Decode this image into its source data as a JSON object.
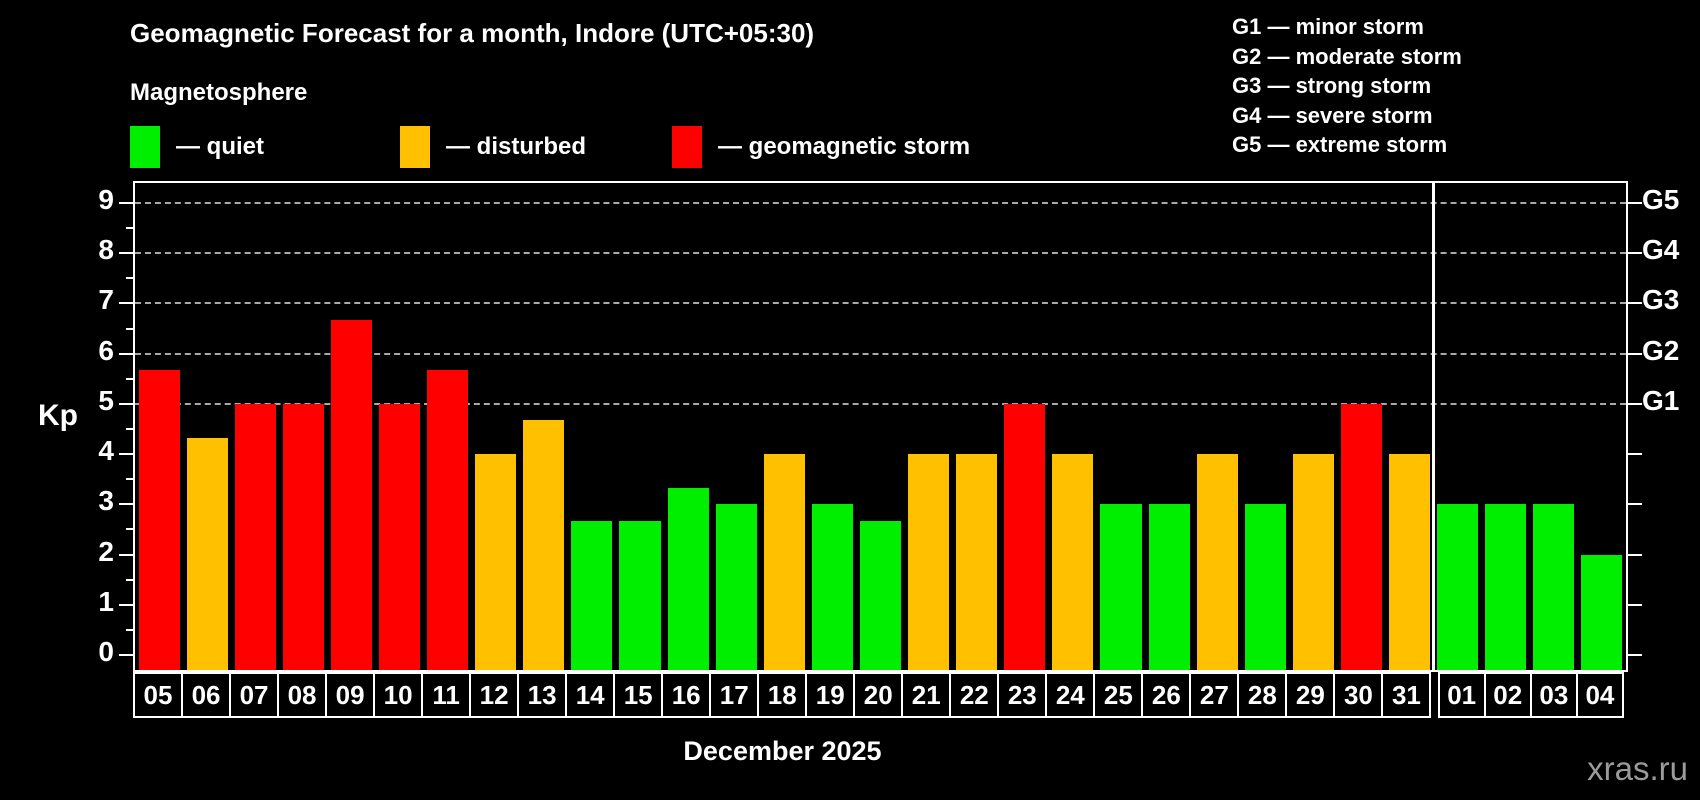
{
  "header": {
    "title": "Geomagnetic Forecast for a month, Indore (UTC+05:30)",
    "subtitle": "Magnetosphere"
  },
  "legend": {
    "items": [
      {
        "key": "quiet",
        "label": "— quiet",
        "color": "#00ee00"
      },
      {
        "key": "disturbed",
        "label": "— disturbed",
        "color": "#ffc000"
      },
      {
        "key": "storm",
        "label": "— geomagnetic storm",
        "color": "#ff0000"
      }
    ]
  },
  "g_scale_legend": {
    "items": [
      "G1 — minor storm",
      "G2 — moderate storm",
      "G3 — strong storm",
      "G4 — severe storm",
      "G5 — extreme storm"
    ]
  },
  "chart_data": {
    "type": "bar",
    "title": "Geomagnetic Forecast for a month, Indore (UTC+05:30)",
    "ylabel": "Kp",
    "xlabel": "December 2025",
    "categories": [
      "05",
      "06",
      "07",
      "08",
      "09",
      "10",
      "11",
      "12",
      "13",
      "14",
      "15",
      "16",
      "17",
      "18",
      "19",
      "20",
      "21",
      "22",
      "23",
      "24",
      "25",
      "26",
      "27",
      "28",
      "29",
      "30",
      "31",
      "01",
      "02",
      "03",
      "04"
    ],
    "values": [
      5.67,
      4.33,
      5,
      5,
      6.67,
      5,
      5.67,
      4,
      4.67,
      2.67,
      2.67,
      3.33,
      3,
      4,
      3,
      2.67,
      4,
      4,
      5,
      4,
      3,
      3,
      4,
      3,
      4,
      5,
      4,
      3,
      3,
      3,
      2
    ],
    "statuses": [
      "storm",
      "disturbed",
      "storm",
      "storm",
      "storm",
      "storm",
      "storm",
      "disturbed",
      "disturbed",
      "quiet",
      "quiet",
      "quiet",
      "quiet",
      "disturbed",
      "quiet",
      "quiet",
      "disturbed",
      "disturbed",
      "storm",
      "disturbed",
      "quiet",
      "quiet",
      "disturbed",
      "quiet",
      "disturbed",
      "storm",
      "disturbed",
      "quiet",
      "quiet",
      "quiet",
      "quiet"
    ],
    "status_colors": {
      "quiet": "#00ee00",
      "disturbed": "#ffc000",
      "storm": "#ff0000"
    },
    "y_ticks": [
      0,
      1,
      2,
      3,
      4,
      5,
      6,
      7,
      8,
      9
    ],
    "ylim": [
      0,
      9
    ],
    "y_display_max": 9.4,
    "y_display_min": -0.3,
    "gridlines_at": [
      5,
      6,
      7,
      8,
      9
    ],
    "grid_style": "dashed horizontal",
    "right_axis": [
      {
        "label": "G1",
        "kp": 5
      },
      {
        "label": "G2",
        "kp": 6
      },
      {
        "label": "G3",
        "kp": 7
      },
      {
        "label": "G4",
        "kp": 8
      },
      {
        "label": "G5",
        "kp": 9
      }
    ],
    "december_days_count": 27,
    "legend_position": "top-left"
  },
  "footer": {
    "month_label": "December 2025",
    "watermark": "xras.ru"
  }
}
